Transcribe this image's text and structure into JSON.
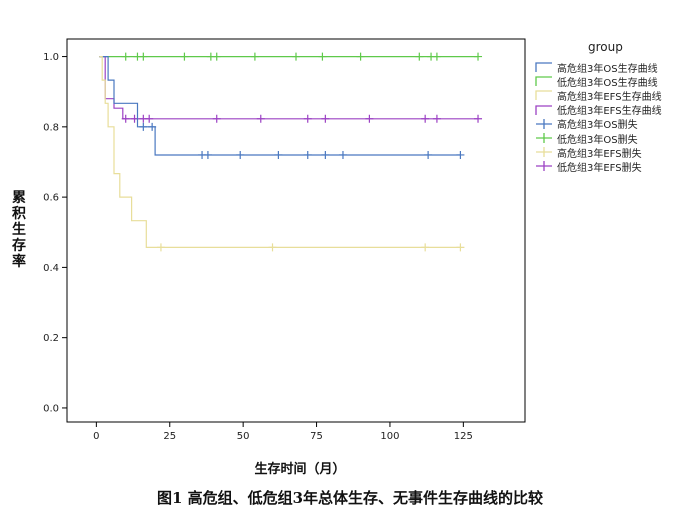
{
  "chart_data": {
    "type": "line",
    "title": "图1 高危组、低危组3年总体生存、无事件生存曲线的比较",
    "xlabel": "生存时间（月）",
    "ylabel": "累积生存率",
    "xlim": [
      -10,
      146
    ],
    "ylim": [
      -0.04,
      1.05
    ],
    "xticks": [
      0,
      25,
      50,
      75,
      100,
      125
    ],
    "yticks": [
      0.0,
      0.2,
      0.4,
      0.6,
      0.8,
      1.0
    ],
    "xtick_labels": [
      "0",
      "25",
      "50",
      "75",
      "100",
      "125"
    ],
    "ytick_labels": [
      "0.0",
      "0.2",
      "0.4",
      "0.6",
      "0.8",
      "1.0"
    ],
    "grid": false,
    "legend_position": "right",
    "legend_title": "group",
    "legend": [
      {
        "label": "高危组3年OS生存曲线",
        "color": "#4a78c0",
        "kind": "step"
      },
      {
        "label": "低危组3年OS生存曲线",
        "color": "#5fc94a",
        "kind": "step"
      },
      {
        "label": "高危组3年EFS生存曲线",
        "color": "#e8de9a",
        "kind": "step"
      },
      {
        "label": "低危组3年EFS生存曲线",
        "color": "#9c42c4",
        "kind": "step"
      },
      {
        "label": "高危组3年OS删失",
        "color": "#4a78c0",
        "kind": "cross"
      },
      {
        "label": "低危组3年OS删失",
        "color": "#5fc94a",
        "kind": "cross"
      },
      {
        "label": "高危组3年EFS删失",
        "color": "#e8de9a",
        "kind": "cross"
      },
      {
        "label": "低危组3年EFS删失",
        "color": "#9c42c4",
        "kind": "cross"
      }
    ],
    "series": [
      {
        "color": "#5fc94a",
        "steps": [
          [
            1,
            1.0
          ],
          [
            130,
            1.0
          ]
        ],
        "censored": [
          [
            10,
            1.0
          ],
          [
            14,
            1.0
          ],
          [
            16,
            1.0
          ],
          [
            30,
            1.0
          ],
          [
            39,
            1.0
          ],
          [
            41,
            1.0
          ],
          [
            54,
            1.0
          ],
          [
            68,
            1.0
          ],
          [
            77,
            1.0
          ],
          [
            90,
            1.0
          ],
          [
            110,
            1.0
          ],
          [
            114,
            1.0
          ],
          [
            116,
            1.0
          ],
          [
            130,
            1.0
          ]
        ]
      },
      {
        "color": "#9c42c4",
        "steps": [
          [
            1,
            1.0
          ],
          [
            3,
            0.88
          ],
          [
            6,
            0.853
          ],
          [
            9,
            0.823
          ],
          [
            130,
            0.823
          ]
        ],
        "censored": [
          [
            10,
            0.823
          ],
          [
            13,
            0.823
          ],
          [
            16,
            0.823
          ],
          [
            18,
            0.823
          ],
          [
            41,
            0.823
          ],
          [
            56,
            0.823
          ],
          [
            72,
            0.823
          ],
          [
            78,
            0.823
          ],
          [
            93,
            0.823
          ],
          [
            112,
            0.823
          ],
          [
            116,
            0.823
          ],
          [
            130,
            0.823
          ]
        ]
      },
      {
        "color": "#4a78c0",
        "steps": [
          [
            1,
            1.0
          ],
          [
            4,
            0.933
          ],
          [
            6,
            0.867
          ],
          [
            14,
            0.8
          ],
          [
            20,
            0.72
          ],
          [
            124,
            0.72
          ]
        ],
        "censored": [
          [
            16,
            0.8
          ],
          [
            19,
            0.8
          ],
          [
            36,
            0.72
          ],
          [
            38,
            0.72
          ],
          [
            49,
            0.72
          ],
          [
            62,
            0.72
          ],
          [
            72,
            0.72
          ],
          [
            78,
            0.72
          ],
          [
            84,
            0.72
          ],
          [
            113,
            0.72
          ],
          [
            124,
            0.72
          ]
        ]
      },
      {
        "color": "#e8de9a",
        "steps": [
          [
            1,
            1.0
          ],
          [
            2,
            0.933
          ],
          [
            3,
            0.867
          ],
          [
            4,
            0.8
          ],
          [
            6,
            0.667
          ],
          [
            8,
            0.6
          ],
          [
            12,
            0.533
          ],
          [
            17,
            0.457
          ],
          [
            124,
            0.457
          ]
        ],
        "censored": [
          [
            22,
            0.457
          ],
          [
            60,
            0.457
          ],
          [
            112,
            0.457
          ],
          [
            124,
            0.457
          ]
        ]
      }
    ]
  }
}
